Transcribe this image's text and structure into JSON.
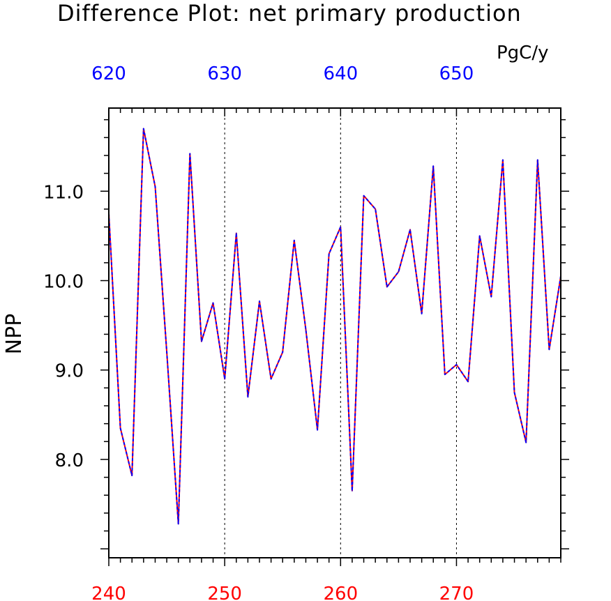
{
  "chart_data": {
    "type": "line",
    "title": "Difference Plot: net primary production",
    "units": "PgC/y",
    "ylabel": "NPP",
    "x_bottom": {
      "ticks": [
        240,
        250,
        260,
        270
      ],
      "range": [
        240,
        279
      ],
      "color": "#ff0000"
    },
    "x_top": {
      "ticks": [
        620,
        630,
        640,
        650
      ],
      "offset": 380,
      "color": "#0000ff"
    },
    "y": {
      "ticks": [
        8.0,
        9.0,
        10.0,
        11.0
      ],
      "tick_labels": [
        "8.0",
        "9.0",
        "10.0",
        "11.0"
      ],
      "range": [
        6.9,
        11.93
      ]
    },
    "grid": "vertical dashed at major x ticks",
    "series": [
      {
        "style": "red solid under blue dashed (identical values)",
        "colors": [
          "#ff0000",
          "#0000ff"
        ],
        "x": [
          240,
          241,
          242,
          243,
          244,
          245,
          246,
          247,
          248,
          249,
          250,
          251,
          252,
          253,
          254,
          255,
          256,
          257,
          258,
          259,
          260,
          261,
          262,
          263,
          264,
          265,
          266,
          267,
          268,
          269,
          270,
          271,
          272,
          273,
          274,
          275,
          276,
          277,
          278,
          279
        ],
        "values": [
          10.75,
          8.35,
          7.82,
          11.7,
          11.05,
          9.2,
          7.28,
          11.42,
          9.32,
          9.75,
          8.9,
          10.53,
          8.7,
          9.77,
          8.9,
          9.2,
          10.45,
          9.45,
          8.33,
          10.3,
          10.6,
          7.65,
          10.95,
          10.8,
          9.93,
          10.1,
          10.57,
          9.63,
          11.28,
          8.95,
          9.06,
          8.87,
          10.5,
          9.82,
          11.35,
          8.75,
          8.19,
          11.35,
          9.23,
          10.05
        ]
      }
    ]
  }
}
